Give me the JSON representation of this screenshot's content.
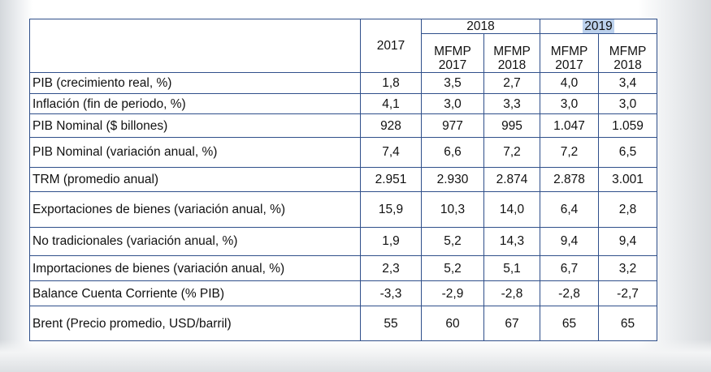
{
  "table": {
    "groups": [
      {
        "year": "2018",
        "selected": false
      },
      {
        "year": "2019",
        "selected": true
      }
    ],
    "columns": [
      {
        "line1": "2017",
        "line2": ""
      },
      {
        "line1": "MFMP",
        "line2": "2017"
      },
      {
        "line1": "MFMP",
        "line2": "2018"
      },
      {
        "line1": "MFMP",
        "line2": "2017"
      },
      {
        "line1": "MFMP",
        "line2": "2018"
      }
    ],
    "rows": [
      {
        "label": "PIB (crecimiento real, %)",
        "values": [
          "1,8",
          "3,5",
          "2,7",
          "4,0",
          "3,4"
        ]
      },
      {
        "label": "Inflación (fin de periodo, %)",
        "values": [
          "4,1",
          "3,0",
          "3,3",
          "3,0",
          "3,0"
        ]
      },
      {
        "label": "PIB Nominal ($ billones)",
        "values": [
          "928",
          "977",
          "995",
          "1.047",
          "1.059"
        ]
      },
      {
        "label": "PIB Nominal (variación anual, %)",
        "values": [
          "7,4",
          "6,6",
          "7,2",
          "7,2",
          "6,5"
        ]
      },
      {
        "label": "TRM (promedio anual)",
        "values": [
          "2.951",
          "2.930",
          "2.874",
          "2.878",
          "3.001"
        ]
      },
      {
        "label": "Exportaciones de bienes (variación anual, %)",
        "values": [
          "15,9",
          "10,3",
          "14,0",
          "6,4",
          "2,8"
        ]
      },
      {
        "label": "No tradicionales (variación anual, %)",
        "values": [
          "1,9",
          "5,2",
          "14,3",
          "9,4",
          "9,4"
        ]
      },
      {
        "label": "Importaciones de bienes (variación anual, %)",
        "values": [
          "2,3",
          "5,2",
          "5,1",
          "6,7",
          "3,2"
        ]
      },
      {
        "label": "Balance Cuenta Corriente (% PIB)",
        "values": [
          "-3,3",
          "-2,9",
          "-2,8",
          "-2,8",
          "-2,7"
        ]
      },
      {
        "label": "Brent (Precio promedio, USD/barril)",
        "values": [
          "55",
          "60",
          "67",
          "65",
          "65"
        ]
      }
    ]
  }
}
